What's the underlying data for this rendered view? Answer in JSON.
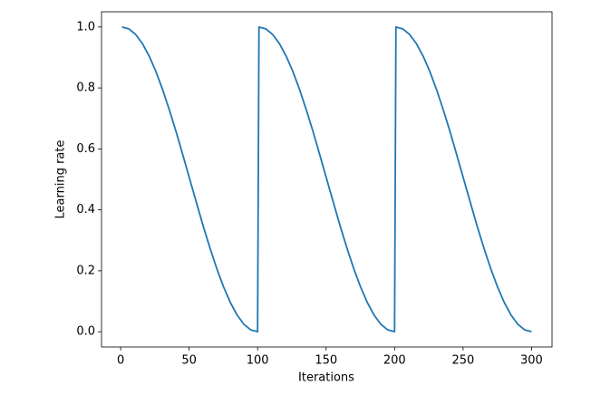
{
  "chart_data": {
    "type": "line",
    "xlabel": "Iterations",
    "ylabel": "Learning rate",
    "x": [
      1,
      5.95,
      10.9,
      15.85,
      20.8,
      25.75,
      30.7,
      35.65,
      40.6,
      45.55,
      50.5,
      55.45,
      60.4,
      65.35,
      70.3,
      75.25,
      80.2,
      85.15,
      90.1,
      95.05,
      100,
      101,
      105.95,
      110.9,
      115.85,
      120.8,
      125.75,
      130.7,
      135.65,
      140.6,
      145.55,
      150.5,
      155.45,
      160.4,
      165.35,
      170.3,
      175.25,
      180.2,
      185.15,
      190.1,
      195.05,
      200,
      201,
      205.95,
      210.9,
      215.85,
      220.8,
      225.75,
      230.7,
      235.65,
      240.6,
      245.55,
      250.5,
      255.45,
      260.4,
      265.35,
      270.3,
      275.25,
      280.2,
      285.15,
      290.1,
      295.05,
      300
    ],
    "values": [
      1,
      0.994,
      0.976,
      0.946,
      0.905,
      0.854,
      0.794,
      0.727,
      0.655,
      0.578,
      0.5,
      0.422,
      0.345,
      0.273,
      0.206,
      0.146,
      0.095,
      0.054,
      0.024,
      0.006,
      0,
      1,
      0.994,
      0.976,
      0.946,
      0.905,
      0.854,
      0.794,
      0.727,
      0.655,
      0.578,
      0.5,
      0.422,
      0.345,
      0.273,
      0.206,
      0.146,
      0.095,
      0.054,
      0.024,
      0.006,
      0,
      1,
      0.994,
      0.976,
      0.946,
      0.905,
      0.854,
      0.794,
      0.727,
      0.655,
      0.578,
      0.5,
      0.422,
      0.345,
      0.273,
      0.206,
      0.146,
      0.095,
      0.054,
      0.024,
      0.006,
      0
    ],
    "color": "#1f77b4",
    "xlim": [
      -13.95,
      314.95
    ],
    "xticks": [
      0,
      50,
      100,
      150,
      200,
      250,
      300
    ],
    "ylim": [
      -0.05,
      1.05
    ],
    "yticks": [
      {
        "value": 0,
        "label": "0.0"
      },
      0.2,
      0.4,
      0.6,
      0.8,
      {
        "value": 1,
        "label": "1.0"
      }
    ]
  }
}
